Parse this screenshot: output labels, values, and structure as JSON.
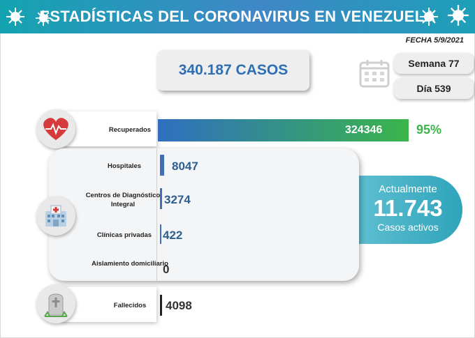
{
  "header": {
    "title": "ESTADÍSTICAS DEL CORONAVIRUS EN VENEZUELA"
  },
  "date": "FECHA 5/9/2021",
  "totals": {
    "cases": "340.187 CASOS",
    "week": "Semana 77",
    "day": "Día 539"
  },
  "recovered": {
    "label": "Recuperados",
    "value": "324346",
    "percent": "95%",
    "fraction": 0.95
  },
  "hospitalization": {
    "rows": [
      {
        "label": "Hospitales",
        "value": "8047"
      },
      {
        "label": "Centros de Diagnóstico Integral",
        "value": "3274"
      },
      {
        "label": "Clínicas privadas",
        "value": "422"
      },
      {
        "label": "Aislamiento domiciliario",
        "value": "0"
      }
    ]
  },
  "active": {
    "line1": "Actualmente",
    "number": "11.743",
    "line2": "Casos activos"
  },
  "deaths": {
    "label": "Fallecidos",
    "value": "4098"
  },
  "icons": [
    "virus-icon",
    "calendar-icon",
    "heart-rate-icon",
    "hospital-icon",
    "gravestone-icon"
  ],
  "colors": {
    "accent": "#2e6fb4",
    "recovered_green": "#3bb54a",
    "header": "#1fa0b5"
  }
}
